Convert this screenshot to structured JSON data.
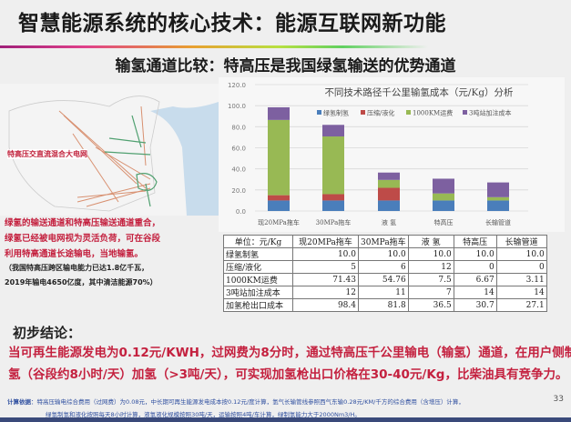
{
  "title": "智慧能源系统的核心技术：能源互联网新功能",
  "subtitle": "输氢通道比较：特高压是我国绿氢输送的优势通道",
  "map": {
    "label": "特高压交直流混合大电网",
    "colors": {
      "ac": "#d89070",
      "dc": "#50a070",
      "sea": "#c8dcec"
    }
  },
  "left_text": {
    "red_lines": [
      "绿氢的输送通道和特高压输送通道重合，",
      "绿氢已经被电网视为灵活负荷，可在谷段",
      "利用特高通道长途输电，当地输氢。"
    ],
    "note_lines": [
      "（我国特高压跨区输电能力已达1.8亿千瓦，",
      "2019年输电4650亿度，其中清洁能源70%）"
    ]
  },
  "chart_data": {
    "type": "bar",
    "stacked": true,
    "title": "不同技术路径千公里输氢成本（元/Kg）分析",
    "categories": [
      "现20MPa拖车",
      "30MPa拖车",
      "液 氢",
      "特高压",
      "长输管道"
    ],
    "series": [
      {
        "name": "绿氢制氢",
        "color": "#4a7ebb",
        "values": [
          10,
          10,
          10,
          10,
          10
        ]
      },
      {
        "name": "压缩/液化",
        "color": "#be4b48",
        "values": [
          5,
          6,
          12,
          0,
          0
        ]
      },
      {
        "name": "1000KM运费",
        "color": "#98b954",
        "values": [
          71.43,
          54.76,
          7.5,
          6.67,
          3.11
        ]
      },
      {
        "name": "3吨站加注成本",
        "color": "#7d60a0",
        "values": [
          12,
          11,
          7,
          14,
          14
        ]
      }
    ],
    "ylim": [
      0,
      120
    ],
    "yticks": [
      "0.0",
      "20.0",
      "40.0",
      "60.0",
      "80.0",
      "100.0",
      "120.0"
    ],
    "grid": true,
    "legend": "top"
  },
  "table": {
    "header": [
      "单位：元/Kg",
      "现20MPa拖车",
      "30MPa拖车",
      "液 氢",
      "特高压",
      "长输管道"
    ],
    "rows": [
      [
        "绿氢制氢",
        "10.0",
        "10.0",
        "10.0",
        "10.0",
        "10.0"
      ],
      [
        "压缩/液化",
        "5",
        "6",
        "12",
        "0",
        "0"
      ],
      [
        "1000KM运费",
        "71.43",
        "54.76",
        "7.5",
        "6.67",
        "3.11"
      ],
      [
        "3吨站加注成本",
        "12",
        "11",
        "7",
        "14",
        "14"
      ],
      [
        "加氢枪出口成本",
        "98.4",
        "81.8",
        "36.5",
        "30.7",
        "27.1"
      ]
    ]
  },
  "conclusion": {
    "heading": "初步结论：",
    "lines": [
      "当可再生能源发电为0.12元/KWH，过网费为8分时，通过特高压千公里输电（输氢）通道，在用户侧制",
      "氢（谷段约8小时/天）加氢（>3吨/天），可实现加氢枪出口价格在30-40元/Kg，比柴油具有竞争力。"
    ]
  },
  "footnote": {
    "label": "计算依据",
    "lines": [
      "：特高压输电综合费用（过网费）为0.08元，中长期可再生能源发电成本按0.12元/度计算，氢气长输管线参照西气东输0.28元/KM/千方的综合费用（含增压）计算，",
      "绿氢制氢和液化按照每天8小时计算，液氢液化规模按照30吨/天，运输按照4吨/车计算，绿制氢能力大于2000Nm3/H。"
    ]
  },
  "page_number": "33"
}
